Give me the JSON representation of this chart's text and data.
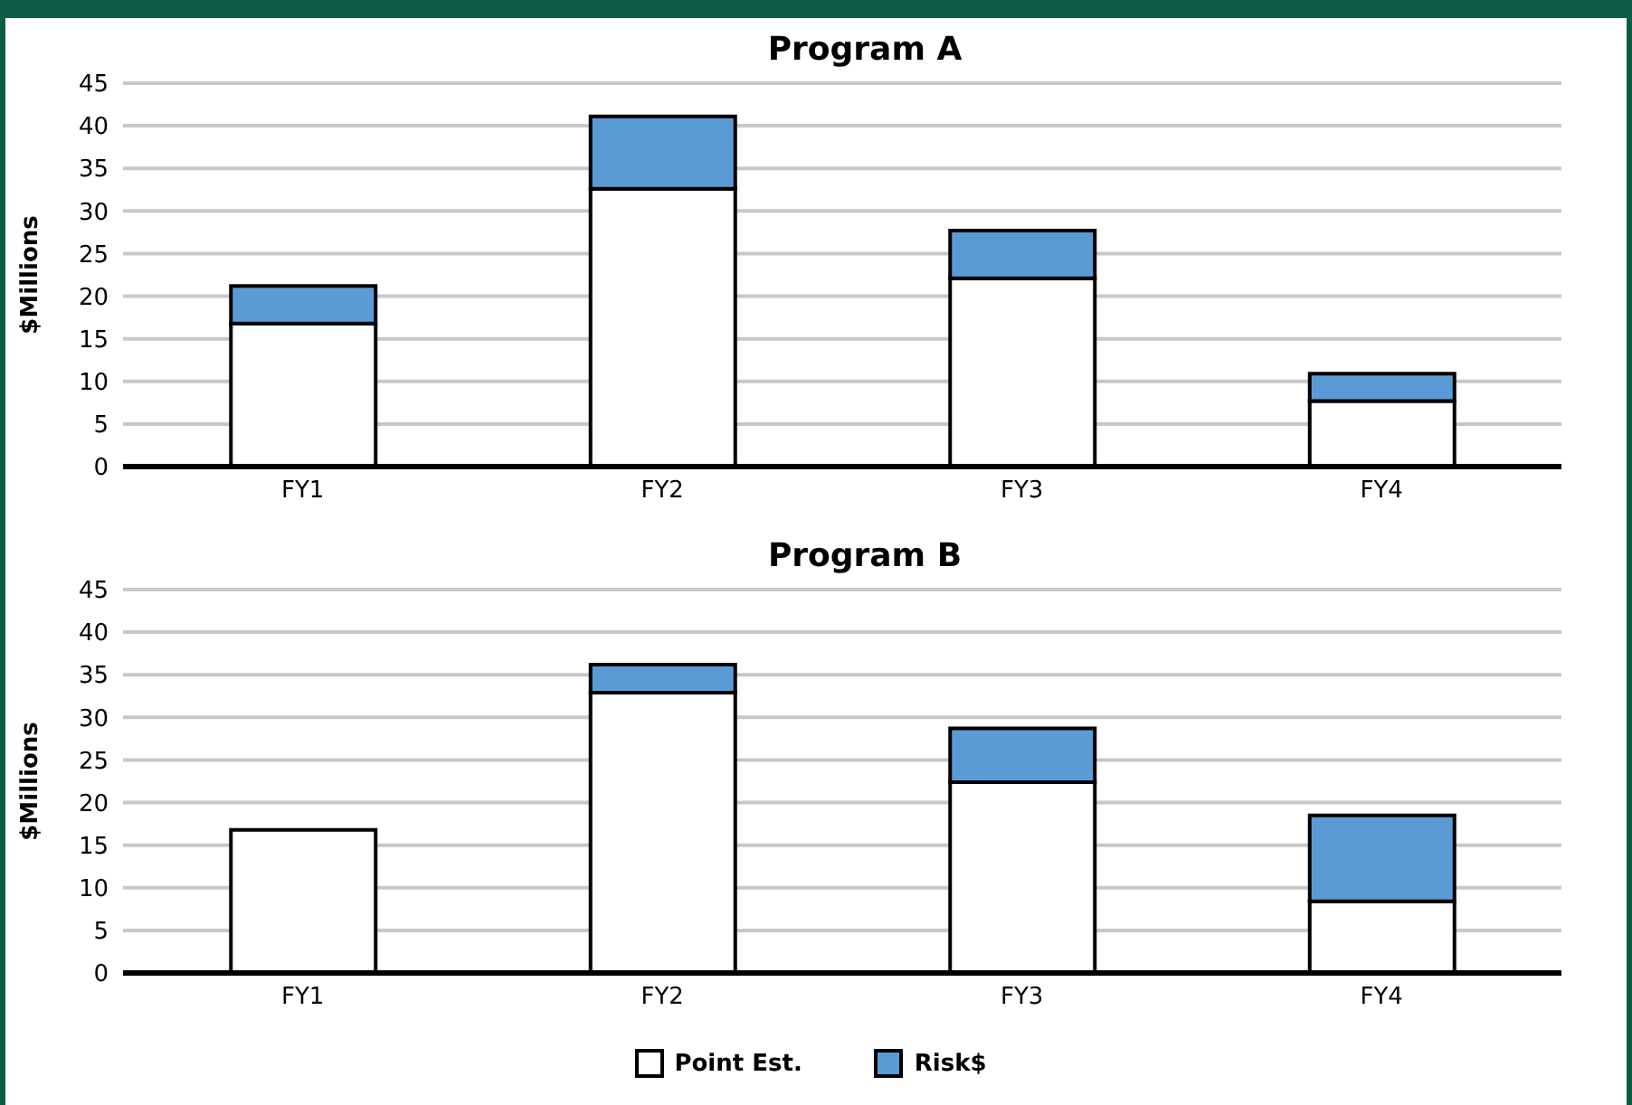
{
  "chart_data": [
    {
      "type": "bar",
      "title": "Program A",
      "ylabel": "$Millions",
      "categories": [
        "FY1",
        "FY2",
        "FY3",
        "FY4"
      ],
      "stacked": true,
      "series": [
        {
          "color": "#ffffff",
          "values": [
            16.8,
            32.6,
            22.1,
            7.7
          ]
        },
        {
          "color": "#5b9bd5",
          "values": [
            4.4,
            8.5,
            5.6,
            3.2
          ]
        }
      ],
      "ylim": [
        0,
        45
      ],
      "yticks": [
        0,
        5,
        10,
        15,
        20,
        25,
        30,
        35,
        40,
        45
      ],
      "grid": "y"
    },
    {
      "type": "bar",
      "title": "Program B",
      "ylabel": "$Millions",
      "categories": [
        "FY1",
        "FY2",
        "FY3",
        "FY4"
      ],
      "stacked": true,
      "series": [
        {
          "name": "Point Est.",
          "color": "#ffffff",
          "values": [
            16.8,
            32.9,
            22.4,
            8.4
          ]
        },
        {
          "name": "Risk$",
          "color": "#5b9bd5",
          "values": [
            0,
            3.3,
            6.3,
            10.1
          ]
        }
      ],
      "ylim": [
        0,
        45
      ],
      "yticks": [
        0,
        5,
        10,
        15,
        20,
        25,
        30,
        35,
        40,
        45
      ],
      "grid": "y",
      "legend": "bottom"
    }
  ]
}
